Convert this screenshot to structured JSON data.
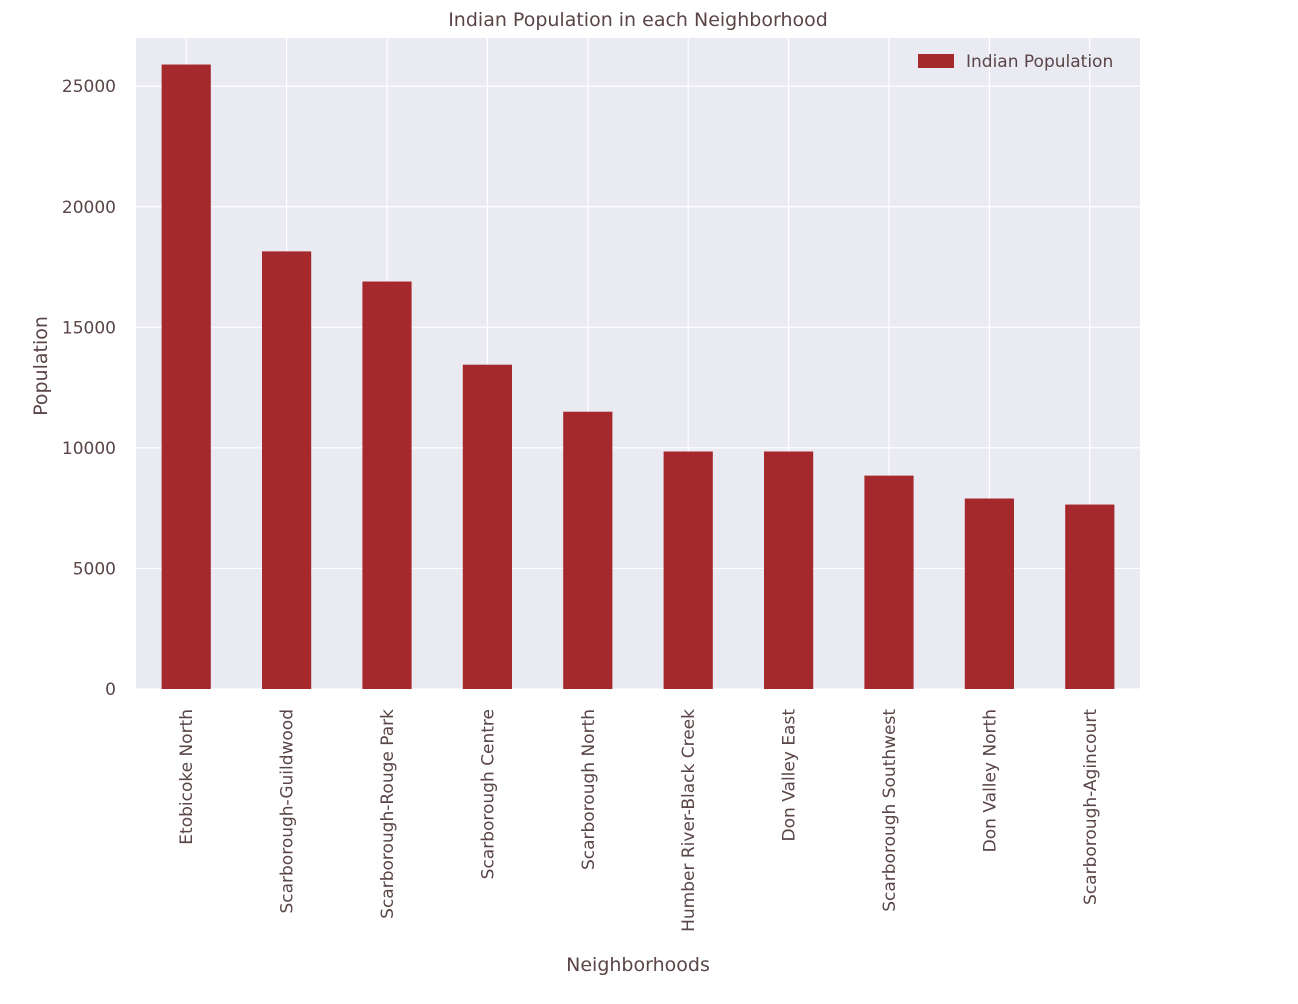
{
  "chart_data": {
    "type": "bar",
    "title": "Indian Population in each Neighborhood",
    "xlabel": "Neighborhoods",
    "ylabel": "Population",
    "categories": [
      "Etobicoke North",
      "Scarborough-Guildwood",
      "Scarborough-Rouge Park",
      "Scarborough Centre",
      "Scarborough North",
      "Humber River-Black Creek",
      "Don Valley East",
      "Scarborough Southwest",
      "Don Valley North",
      "Scarborough-Agincourt"
    ],
    "series": [
      {
        "name": "Indian Population",
        "values": [
          25900,
          18150,
          16900,
          13450,
          11500,
          9850,
          9850,
          8850,
          7900,
          7650
        ]
      }
    ],
    "ylim": [
      0,
      27000
    ],
    "yticks": [
      0,
      5000,
      10000,
      15000,
      20000,
      25000
    ],
    "grid": true,
    "legend_position": "top-right",
    "colors": {
      "bar": "#a5282c",
      "plot_background": "#eaeaf2",
      "grid": "#ffffff",
      "text": "#5a4547"
    }
  }
}
